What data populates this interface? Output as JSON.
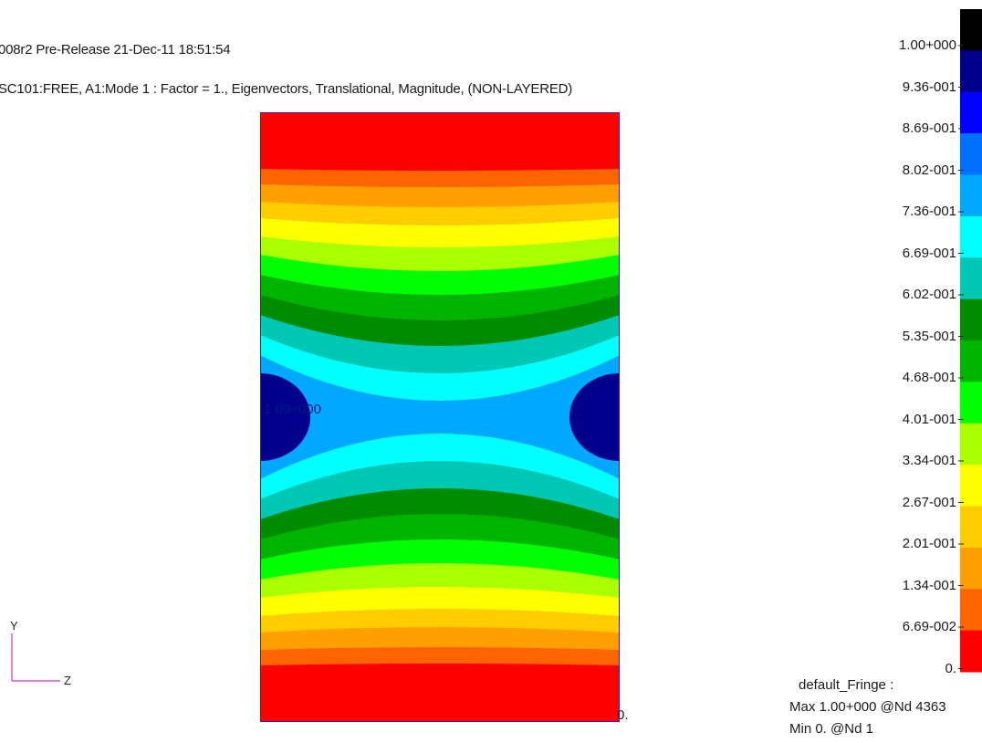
{
  "header": {
    "line1": "008r2 Pre-Release  21-Dec-11 18:51:54",
    "line2": "SC101:FREE, A1:Mode 1 : Factor = 1., Eigenvectors, Translational, Magnitude, (NON-LAYERED)"
  },
  "plot": {
    "max_value_label": "1.00+000",
    "min_value_label": "0."
  },
  "legend": {
    "labels": [
      "1.00+000",
      "9.36-001",
      "8.69-001",
      "8.02-001",
      "7.36-001",
      "6.69-001",
      "6.02-001",
      "5.35-001",
      "4.68-001",
      "4.01-001",
      "3.34-001",
      "2.67-001",
      "2.01-001",
      "1.34-001",
      "6.69-002",
      "0."
    ],
    "colors": [
      "#000000",
      "#00008b",
      "#0000ff",
      "#0070ff",
      "#00a8ff",
      "#00ffff",
      "#00c8b4",
      "#008c00",
      "#00b400",
      "#00ff00",
      "#aaff00",
      "#ffff00",
      "#ffcc00",
      "#ffa000",
      "#ff6400",
      "#ff0000"
    ],
    "fringe_title": "default_Fringe :",
    "fringe_max": "Max 1.00+000 @Nd 4363",
    "fringe_min": "Min  0. @Nd 1"
  },
  "axes": {
    "y_label": "Y",
    "z_label": "Z"
  }
}
